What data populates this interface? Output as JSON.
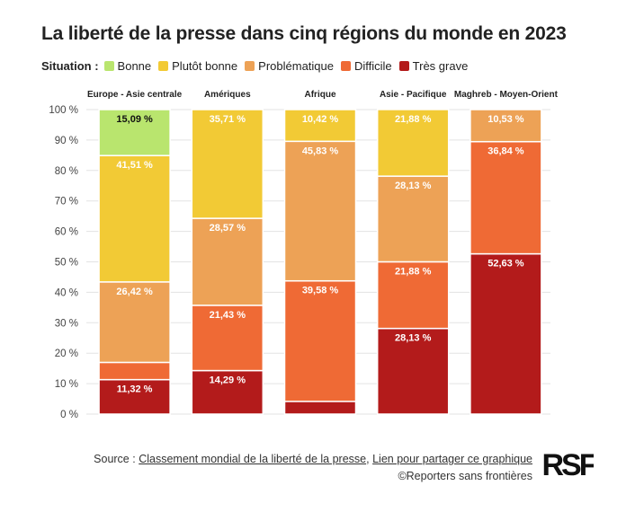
{
  "title": "La liberté de la presse dans cinq régions du monde en 2023",
  "legend": {
    "title": "Situation :",
    "items": [
      {
        "label": "Bonne",
        "color": "#b9e56e"
      },
      {
        "label": "Plutôt bonne",
        "color": "#f2ca35"
      },
      {
        "label": "Problématique",
        "color": "#eda256"
      },
      {
        "label": "Difficile",
        "color": "#ef6a35"
      },
      {
        "label": "Très grave",
        "color": "#b31b1b"
      }
    ]
  },
  "chart_data": {
    "type": "bar",
    "stacked": true,
    "categories": [
      "Europe - Asie centrale",
      "Amériques",
      "Afrique",
      "Asie - Pacifique",
      "Maghreb - Moyen-Orient"
    ],
    "series": [
      {
        "name": "Très grave",
        "color": "#b31b1b",
        "values": [
          11.32,
          14.29,
          4.17,
          28.13,
          52.63
        ],
        "labels": [
          "11,32 %",
          "14,29 %",
          "",
          "28,13 %",
          "52,63 %"
        ]
      },
      {
        "name": "Difficile",
        "color": "#ef6a35",
        "values": [
          5.66,
          21.43,
          39.58,
          21.88,
          36.84
        ],
        "labels": [
          "",
          "21,43 %",
          "39,58 %",
          "21,88 %",
          "36,84 %"
        ]
      },
      {
        "name": "Problématique",
        "color": "#eda256",
        "values": [
          26.42,
          28.57,
          45.83,
          28.13,
          10.53
        ],
        "labels": [
          "26,42 %",
          "28,57 %",
          "45,83 %",
          "28,13 %",
          "10,53 %"
        ]
      },
      {
        "name": "Plutôt bonne",
        "color": "#f2ca35",
        "values": [
          41.51,
          35.71,
          10.42,
          21.88,
          0
        ],
        "labels": [
          "41,51 %",
          "35,71 %",
          "10,42 %",
          "21,88 %",
          ""
        ]
      },
      {
        "name": "Bonne",
        "color": "#b9e56e",
        "values": [
          15.09,
          0,
          0,
          0,
          0
        ],
        "labels": [
          "15,09 %",
          "",
          "",
          "",
          ""
        ]
      }
    ],
    "ylim": [
      0,
      100
    ],
    "yticks": [
      "0 %",
      "10 %",
      "20 %",
      "30 %",
      "40 %",
      "50 %",
      "60 %",
      "70 %",
      "80 %",
      "90 %",
      "100 %"
    ],
    "grid": true,
    "legend_position": "top-left"
  },
  "footer": {
    "source_prefix": "Source :",
    "source_link": "Classement mondial de la liberté de la presse",
    "separator": ",",
    "share_link": "Lien pour partager ce graphique",
    "credit": "©Reporters sans frontières"
  },
  "logo": "RSF"
}
